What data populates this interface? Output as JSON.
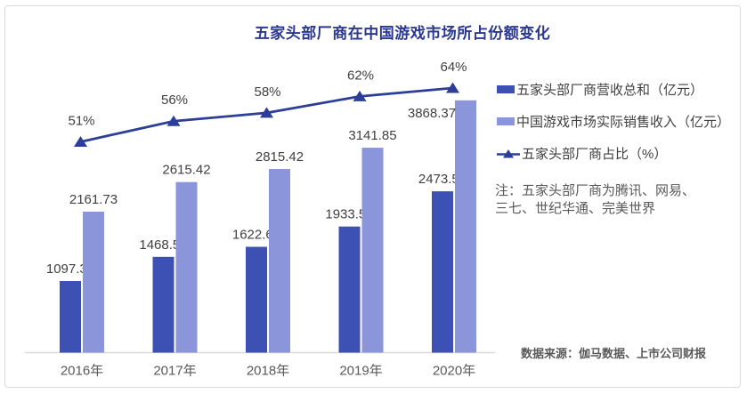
{
  "card": {
    "note_line1": "注：五家头部厂商为腾讯、网易、",
    "note_line2": "三七、世纪华通、完美世界",
    "source": "数据来源：伽马数据、上市公司财报"
  },
  "colors": {
    "title": "#2B3890",
    "bar_dark": "#3C51B3",
    "bar_light": "#8B95D9",
    "line": "#2D3E99",
    "value_label": "#404040",
    "axis_label": "#595959",
    "note_text": "#595959",
    "border": "#D9D9D9"
  },
  "chart_data": {
    "type": "bar",
    "subtype": "grouped bars + line on secondary percent axis",
    "title": "五家头部厂商在中国游戏市场所占份额变化",
    "categories": [
      "2016年",
      "2017年",
      "2018年",
      "2019年",
      "2020年"
    ],
    "series": [
      {
        "name": "五家头部厂商营收总和（亿元）",
        "type": "bar",
        "color": "#3C51B3",
        "values": [
          1097.38,
          1468.53,
          1622.61,
          1933.56,
          2473.51
        ]
      },
      {
        "name": "中国游戏市场实际销售收入（亿元）",
        "type": "bar",
        "color": "#8B95D9",
        "values": [
          2161.73,
          2615.42,
          2815.42,
          3141.85,
          3868.37
        ],
        "label_offsets": [
          [
            0,
            0
          ],
          [
            0,
            0
          ],
          [
            0,
            0
          ],
          [
            0,
            0
          ],
          [
            -38,
            28
          ]
        ]
      },
      {
        "name": "五家头部厂商占比（%）",
        "type": "line",
        "color": "#2D3E99",
        "marker": "triangle",
        "values": [
          51,
          56,
          58,
          62,
          64
        ],
        "value_labels": [
          "51%",
          "56%",
          "58%",
          "62%",
          "64%"
        ]
      }
    ],
    "xlabel": "",
    "ylabel": "",
    "left_ylim": [
      0,
      4500
    ],
    "right_ylim": [
      0,
      71
    ],
    "grid": false,
    "value_labels_shown": true,
    "legend_position": "right"
  }
}
